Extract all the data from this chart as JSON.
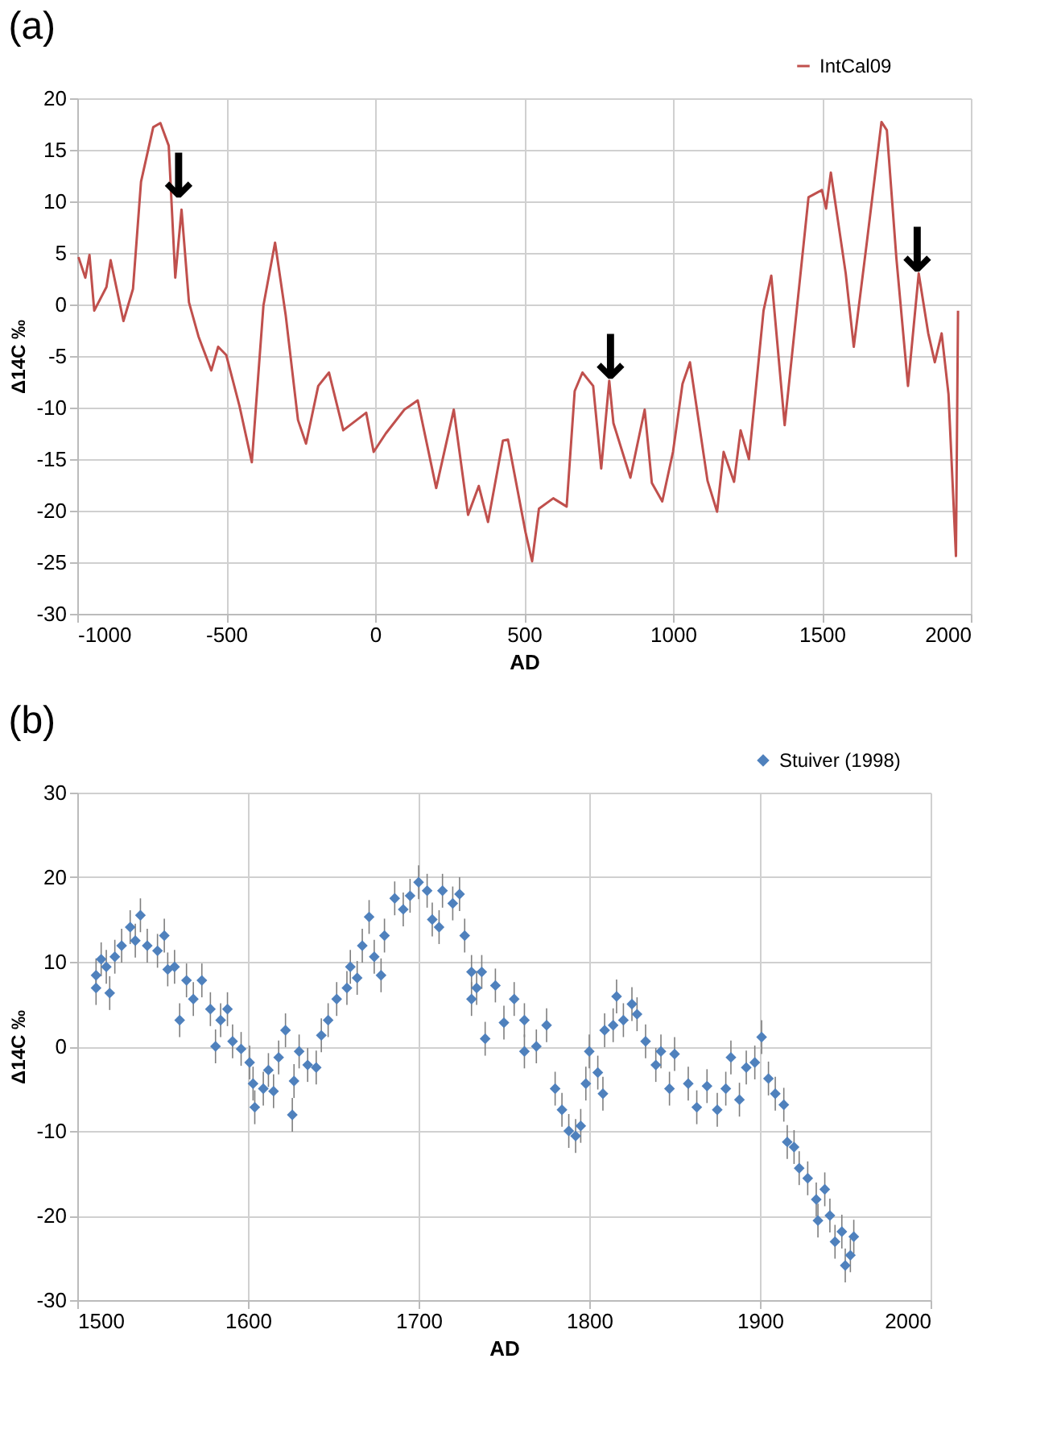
{
  "chart_data": [
    {
      "type": "line",
      "title": "(a)",
      "xlabel": "AD",
      "ylabel": "Δ14C ‰",
      "xlim": [
        -1000,
        2000
      ],
      "xticks": [
        -1000,
        -500,
        0,
        500,
        1000,
        1500,
        2000
      ],
      "ylim": [
        -30,
        20
      ],
      "yticks": [
        -30,
        -25,
        -20,
        -15,
        -10,
        -5,
        0,
        5,
        10,
        15,
        20
      ],
      "grid": true,
      "legend": "top right",
      "line_style": "solid",
      "series": [
        {
          "name": "IntCal09",
          "color": "#c0504d",
          "x": [
            -996,
            -973,
            -959,
            -943,
            -902,
            -888,
            -845,
            -813,
            -786,
            -745,
            -721,
            -693,
            -671,
            -650,
            -625,
            -593,
            -550,
            -527,
            -500,
            -455,
            -414,
            -375,
            -336,
            -300,
            -259,
            -232,
            -191,
            -155,
            -107,
            -30,
            -5,
            36,
            98,
            143,
            205,
            264,
            312,
            348,
            379,
            429,
            446,
            505,
            527,
            550,
            598,
            643,
            670,
            696,
            732,
            759,
            786,
            800,
            857,
            905,
            929,
            964,
            1000,
            1032,
            1057,
            1116,
            1148,
            1170,
            1205,
            1227,
            1255,
            1304,
            1330,
            1375,
            1455,
            1500,
            1514,
            1530,
            1580,
            1607,
            1652,
            1700,
            1718,
            1750,
            1789,
            1825,
            1857,
            1879,
            1902,
            1925,
            1950,
            1957
          ],
          "values": [
            4.6,
            2.6,
            4.8,
            -0.6,
            1.7,
            4.3,
            -1.6,
            1.5,
            11.9,
            17.2,
            17.6,
            15.4,
            2.6,
            9.2,
            0.2,
            -3.1,
            -6.4,
            -4.1,
            -4.9,
            -9.9,
            -15.3,
            -0.1,
            6.0,
            -1.1,
            -11.2,
            -13.5,
            -7.9,
            -6.6,
            -12.2,
            -10.5,
            -14.3,
            -12.5,
            -10.2,
            -9.3,
            -17.8,
            -10.2,
            -20.4,
            -17.6,
            -21.1,
            -13.2,
            -13.1,
            -22.1,
            -24.9,
            -19.8,
            -18.8,
            -19.6,
            -8.4,
            -6.6,
            -7.9,
            -15.9,
            -7.4,
            -11.5,
            -16.8,
            -10.2,
            -17.3,
            -19.1,
            -14.3,
            -7.7,
            -5.6,
            -17.1,
            -20.1,
            -14.3,
            -17.2,
            -12.2,
            -15.0,
            -0.6,
            2.8,
            -11.7,
            10.4,
            11.1,
            9.3,
            12.8,
            3.0,
            -4.1,
            6.3,
            17.7,
            16.9,
            4.5,
            -7.9,
            3.0,
            -2.8,
            -5.6,
            -2.8,
            -8.7,
            -24.4,
            -0.6
          ]
        }
      ],
      "annotations": [
        {
          "text": "↓",
          "x": -660,
          "y": 11
        },
        {
          "text": "↓",
          "x": 790,
          "y": -6.6
        },
        {
          "text": "↓",
          "x": 1820,
          "y": 3.8
        }
      ]
    },
    {
      "type": "scatter",
      "title": "(b)",
      "xlabel": "AD",
      "ylabel": "Δ14C ‰",
      "xlim": [
        1500,
        2000
      ],
      "xticks": [
        1500,
        1600,
        1700,
        1800,
        1900,
        2000
      ],
      "ylim": [
        -30,
        30
      ],
      "yticks": [
        -30,
        -20,
        -10,
        0,
        10,
        20,
        30
      ],
      "grid": true,
      "legend": "top right",
      "marker": "diamond",
      "series": [
        {
          "name": "Stuiver (1998)",
          "color": "#4f81bd",
          "x": [
            1511,
            1511,
            1514,
            1517,
            1519,
            1522,
            1526,
            1531,
            1534,
            1537,
            1541,
            1547,
            1551,
            1553,
            1557,
            1560,
            1564,
            1568,
            1573,
            1578,
            1581,
            1584,
            1588,
            1591,
            1596,
            1601,
            1603,
            1604,
            1609,
            1612,
            1615,
            1618,
            1622,
            1626,
            1627,
            1630,
            1635,
            1640,
            1643,
            1647,
            1652,
            1658,
            1660,
            1664,
            1667,
            1671,
            1674,
            1678,
            1680,
            1686,
            1691,
            1695,
            1700,
            1705,
            1708,
            1712,
            1714,
            1720,
            1724,
            1727,
            1731,
            1731,
            1734,
            1737,
            1739,
            1745,
            1750,
            1756,
            1762,
            1762,
            1769,
            1775,
            1780,
            1784,
            1788,
            1792,
            1795,
            1798,
            1800,
            1805,
            1808,
            1809,
            1814,
            1816,
            1820,
            1825,
            1828,
            1833,
            1839,
            1842,
            1847,
            1850,
            1858,
            1863,
            1869,
            1875,
            1880,
            1883,
            1888,
            1892,
            1897,
            1901,
            1905,
            1909,
            1914,
            1916,
            1920,
            1923,
            1928,
            1933,
            1934,
            1938,
            1941,
            1944,
            1948,
            1950,
            1953,
            1955
          ],
          "values": [
            8.4,
            6.9,
            10.3,
            9.4,
            6.3,
            10.6,
            11.9,
            14.1,
            12.5,
            15.5,
            11.9,
            11.3,
            13.1,
            9.1,
            9.4,
            3.1,
            7.8,
            5.6,
            7.8,
            4.4,
            0.0,
            3.1,
            4.4,
            0.6,
            -0.3,
            -1.9,
            -4.4,
            -7.2,
            -5.0,
            -2.8,
            -5.3,
            -1.3,
            1.9,
            -8.1,
            -4.1,
            -0.6,
            -2.2,
            -2.5,
            1.3,
            3.1,
            5.6,
            6.9,
            9.4,
            8.1,
            11.9,
            15.3,
            10.6,
            8.4,
            13.1,
            17.5,
            16.2,
            17.8,
            19.4,
            18.4,
            15.0,
            14.1,
            18.4,
            16.9,
            18.0,
            13.1,
            8.8,
            5.6,
            6.9,
            8.8,
            0.9,
            7.2,
            2.8,
            5.6,
            3.1,
            -0.6,
            0.0,
            2.5,
            -5.0,
            -7.5,
            -10.0,
            -10.6,
            -9.4,
            -4.4,
            -0.6,
            -3.1,
            -5.6,
            1.9,
            2.5,
            5.9,
            3.1,
            5.0,
            3.8,
            0.6,
            -2.2,
            -0.6,
            -5.0,
            -0.9,
            -4.4,
            -7.2,
            -4.7,
            -7.5,
            -5.0,
            -1.3,
            -6.3,
            -2.5,
            -1.9,
            1.1,
            -3.8,
            -5.6,
            -6.9,
            -11.3,
            -11.9,
            -14.4,
            -15.6,
            -18.1,
            -20.6,
            -16.9,
            -20.0,
            -23.1,
            -21.9,
            -25.9,
            -24.7,
            -22.5
          ],
          "errors": [
            2,
            2,
            2,
            2,
            2,
            2,
            2,
            2,
            2,
            2,
            2,
            2,
            2,
            2,
            2,
            2,
            2,
            2,
            2,
            2,
            2,
            2,
            2,
            2,
            2,
            2,
            2,
            2,
            2,
            2,
            2,
            2,
            2,
            2,
            2,
            2,
            2,
            2,
            2,
            2,
            2,
            2,
            2,
            2,
            2,
            2,
            2,
            2,
            2,
            2,
            2,
            2,
            2,
            2,
            2,
            2,
            2,
            2,
            2,
            2,
            2,
            2,
            2,
            2,
            2,
            2,
            2,
            2,
            2,
            2,
            2,
            2,
            2,
            2,
            2,
            2,
            2,
            2,
            2,
            2,
            2,
            2,
            2,
            2,
            2,
            2,
            2,
            2,
            2,
            2,
            2,
            2,
            2,
            2,
            2,
            2,
            2,
            2,
            2,
            2,
            2,
            2,
            2,
            2,
            2,
            2,
            2,
            2,
            2,
            2,
            2,
            2,
            2,
            2,
            2,
            2,
            2,
            2
          ]
        }
      ]
    }
  ]
}
